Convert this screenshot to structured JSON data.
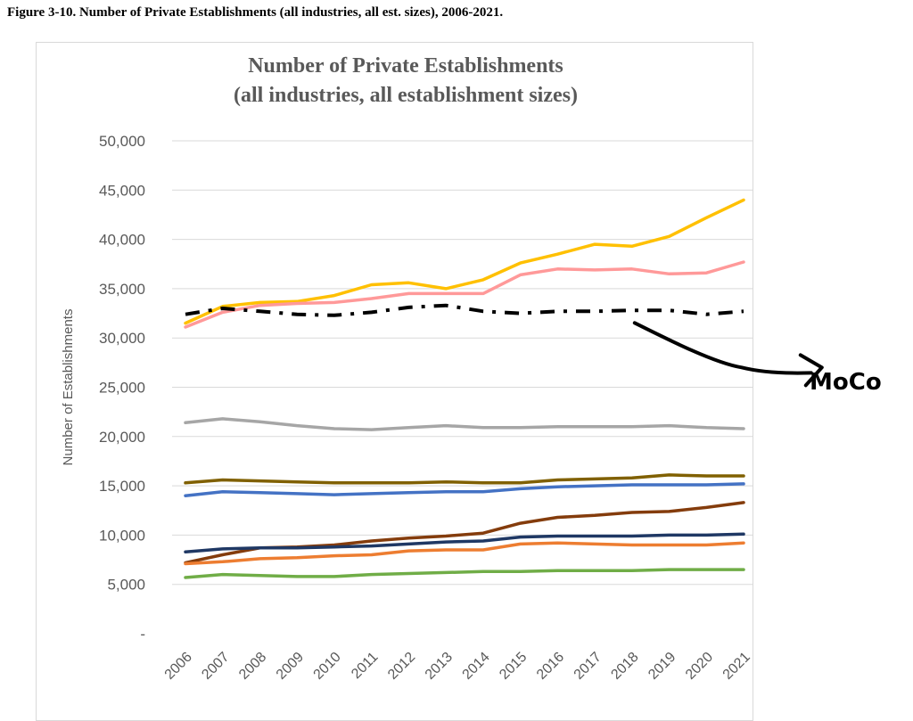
{
  "figure": {
    "caption": "Figure 3-10. Number of Private Establishments (all industries, all est. sizes), 2006-2021."
  },
  "chart_data": {
    "type": "line",
    "title_lines": [
      "Number of Private Establishments",
      "(all industries, all establishment sizes)"
    ],
    "xlabel": "",
    "ylabel": "Number of Establishments",
    "ylim": [
      0,
      50000
    ],
    "y_ticks": [
      0,
      5000,
      10000,
      15000,
      20000,
      25000,
      30000,
      35000,
      40000,
      45000,
      50000
    ],
    "y_tick_labels": [
      "-",
      "5,000",
      "10,000",
      "15,000",
      "20,000",
      "25,000",
      "30,000",
      "35,000",
      "40,000",
      "45,000",
      "50,000"
    ],
    "x": [
      "2006",
      "2007",
      "2008",
      "2009",
      "2010",
      "2011",
      "2012",
      "2013",
      "2014",
      "2015",
      "2016",
      "2017",
      "2018",
      "2019",
      "2020",
      "2021"
    ],
    "grid": true,
    "legend": "none",
    "series": [
      {
        "color": "#ffc000",
        "dash": "solid",
        "values": [
          31500,
          33200,
          33600,
          33700,
          34300,
          35400,
          35600,
          35000,
          35900,
          37600,
          38500,
          39500,
          39300,
          40300,
          42200,
          44000
        ]
      },
      {
        "color": "#ff9999",
        "dash": "solid",
        "values": [
          31100,
          32600,
          33300,
          33500,
          33600,
          34000,
          34500,
          34500,
          34500,
          36400,
          37000,
          36900,
          37000,
          36500,
          36600,
          37700
        ]
      },
      {
        "color": "#000000",
        "dash": "dashdot",
        "values": [
          32400,
          33000,
          32700,
          32400,
          32300,
          32600,
          33100,
          33300,
          32700,
          32500,
          32700,
          32700,
          32800,
          32800,
          32400,
          32700
        ]
      },
      {
        "color": "#a6a6a6",
        "dash": "solid",
        "values": [
          21400,
          21800,
          21500,
          21100,
          20800,
          20700,
          20900,
          21100,
          20900,
          20900,
          21000,
          21000,
          21000,
          21100,
          20900,
          20800
        ]
      },
      {
        "color": "#806000",
        "dash": "solid",
        "values": [
          15300,
          15600,
          15500,
          15400,
          15300,
          15300,
          15300,
          15400,
          15300,
          15300,
          15600,
          15700,
          15800,
          16100,
          16000,
          16000
        ]
      },
      {
        "color": "#4472c4",
        "dash": "solid",
        "values": [
          14000,
          14400,
          14300,
          14200,
          14100,
          14200,
          14300,
          14400,
          14400,
          14700,
          14900,
          15000,
          15100,
          15100,
          15100,
          15200
        ]
      },
      {
        "color": "#843c0c",
        "dash": "solid",
        "values": [
          7200,
          8000,
          8700,
          8800,
          9000,
          9400,
          9700,
          9900,
          10200,
          11200,
          11800,
          12000,
          12300,
          12400,
          12800,
          13300
        ]
      },
      {
        "color": "#1f3864",
        "dash": "solid",
        "values": [
          8300,
          8600,
          8700,
          8700,
          8800,
          8900,
          9100,
          9300,
          9400,
          9800,
          9900,
          9900,
          9900,
          10000,
          10000,
          10100
        ]
      },
      {
        "color": "#ed7d31",
        "dash": "solid",
        "values": [
          7100,
          7300,
          7600,
          7700,
          7900,
          8000,
          8400,
          8500,
          8500,
          9100,
          9200,
          9100,
          9000,
          9000,
          9000,
          9200
        ]
      },
      {
        "color": "#70ad47",
        "dash": "solid",
        "values": [
          5700,
          6000,
          5900,
          5800,
          5800,
          6000,
          6100,
          6200,
          6300,
          6300,
          6400,
          6400,
          6400,
          6500,
          6500,
          6500
        ]
      }
    ]
  },
  "annotation": {
    "text": "MoCo",
    "color": "#000000",
    "target_year": "2018",
    "target_value": 32700
  }
}
